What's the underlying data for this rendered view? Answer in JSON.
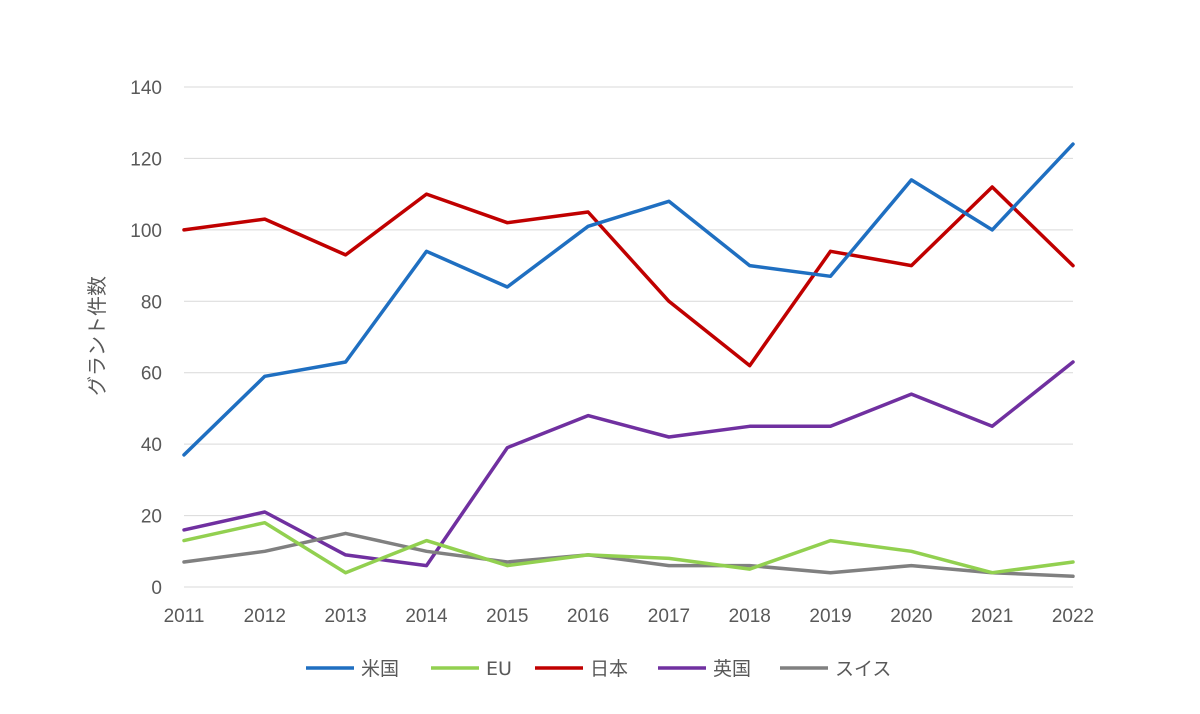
{
  "chart_data": {
    "type": "line",
    "title": "",
    "xlabel": "",
    "ylabel": "グラント件数",
    "ylim": [
      0,
      140
    ],
    "yticks": [
      0,
      20,
      40,
      60,
      80,
      100,
      120,
      140
    ],
    "grid": true,
    "legend_position": "bottom",
    "categories": [
      "2011",
      "2012",
      "2013",
      "2014",
      "2015",
      "2016",
      "2017",
      "2018",
      "2019",
      "2020",
      "2021",
      "2022"
    ],
    "series": [
      {
        "name": "米国",
        "color": "#1F6FC1",
        "values": [
          37,
          59,
          63,
          94,
          84,
          101,
          108,
          90,
          87,
          114,
          100,
          124
        ]
      },
      {
        "name": "EU",
        "color": "#92D050",
        "values": [
          13,
          18,
          4,
          13,
          6,
          9,
          8,
          5,
          13,
          10,
          4,
          7
        ]
      },
      {
        "name": "日本",
        "color": "#C00000",
        "values": [
          100,
          103,
          93,
          110,
          102,
          105,
          80,
          62,
          94,
          90,
          112,
          90
        ]
      },
      {
        "name": "英国",
        "color": "#7030A0",
        "values": [
          16,
          21,
          9,
          6,
          39,
          48,
          42,
          45,
          45,
          54,
          45,
          63
        ]
      },
      {
        "name": "スイス",
        "color": "#808080",
        "values": [
          7,
          10,
          15,
          10,
          7,
          9,
          6,
          6,
          4,
          6,
          4,
          3
        ]
      }
    ]
  }
}
